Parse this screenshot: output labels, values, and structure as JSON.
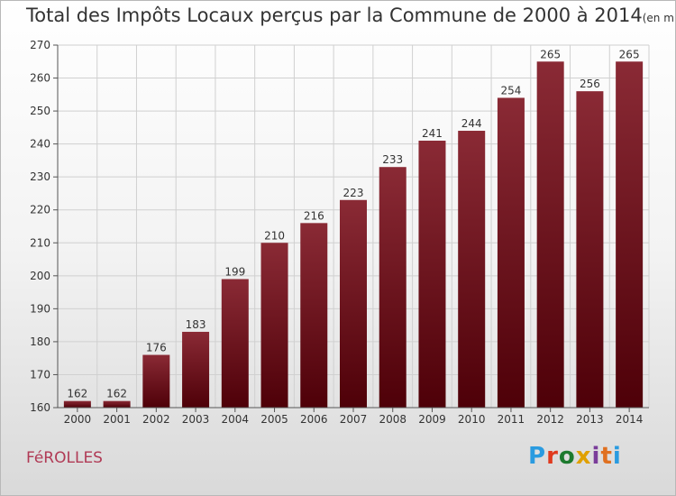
{
  "chart_data": {
    "type": "bar",
    "title": "Total des Impôts Locaux perçus par la Commune de 2000 à 2014",
    "unit_note": "(en milliers d'€)",
    "categories": [
      "2000",
      "2001",
      "2002",
      "2003",
      "2004",
      "2005",
      "2006",
      "2007",
      "2008",
      "2009",
      "2010",
      "2011",
      "2012",
      "2013",
      "2014"
    ],
    "values": [
      162,
      162,
      176,
      183,
      199,
      210,
      216,
      223,
      233,
      241,
      244,
      254,
      265,
      256,
      265
    ],
    "ylim": [
      160,
      270
    ],
    "yticks": [
      160,
      170,
      180,
      190,
      200,
      210,
      220,
      230,
      240,
      250,
      260,
      270
    ],
    "xlabel": "",
    "ylabel": "",
    "grid": true,
    "bar_color_top": "#8a2a35",
    "bar_color_bottom": "#4e0008"
  },
  "commune": "FéROLLES",
  "brand": "Proxiti",
  "brand_colors": [
    "#2a9be0",
    "#e03a1e",
    "#1d7a2e",
    "#e0a000",
    "#7a3c9a",
    "#e07020",
    "#2a9be0"
  ]
}
